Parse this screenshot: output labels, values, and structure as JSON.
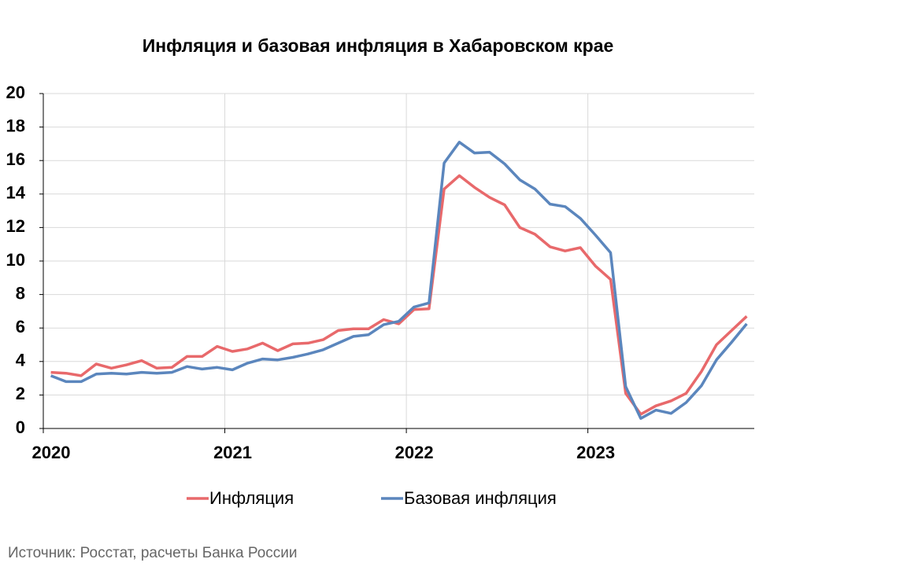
{
  "chart_data": {
    "type": "line",
    "title": "Инфляция и базовая инфляция в Хабаровском крае",
    "categories": [
      "2020",
      null,
      null,
      null,
      null,
      null,
      null,
      null,
      null,
      null,
      null,
      null,
      "2021",
      null,
      null,
      null,
      null,
      null,
      null,
      null,
      null,
      null,
      null,
      null,
      "2022",
      null,
      null,
      null,
      null,
      null,
      null,
      null,
      null,
      null,
      null,
      null,
      "2023",
      null,
      null,
      null,
      null,
      null,
      null,
      null,
      null,
      null,
      null
    ],
    "series": [
      {
        "name": "Инфляция",
        "color": "#e8696b",
        "values": [
          3.35,
          3.3,
          3.15,
          3.85,
          3.6,
          3.8,
          4.05,
          3.6,
          3.65,
          4.3,
          4.3,
          4.9,
          4.6,
          4.75,
          5.1,
          4.65,
          5.05,
          5.1,
          5.3,
          5.85,
          5.95,
          5.95,
          6.5,
          6.25,
          7.1,
          7.15,
          14.3,
          15.1,
          14.4,
          13.8,
          13.35,
          12.0,
          11.6,
          10.85,
          10.6,
          10.8,
          9.7,
          8.9,
          2.1,
          0.85,
          1.35,
          1.65,
          2.1,
          3.4,
          5.0,
          5.85,
          6.7
        ]
      },
      {
        "name": "Базовая инфляция",
        "color": "#5b86bd",
        "values": [
          3.15,
          2.8,
          2.8,
          3.25,
          3.3,
          3.25,
          3.35,
          3.3,
          3.35,
          3.7,
          3.55,
          3.65,
          3.5,
          3.9,
          4.15,
          4.1,
          4.25,
          4.45,
          4.7,
          5.1,
          5.5,
          5.6,
          6.2,
          6.4,
          7.25,
          7.5,
          15.85,
          17.1,
          16.45,
          16.5,
          15.8,
          14.85,
          14.3,
          13.4,
          13.25,
          12.55,
          11.55,
          10.5,
          2.5,
          0.6,
          1.1,
          0.9,
          1.55,
          2.55,
          4.1,
          5.15,
          6.25
        ]
      }
    ],
    "ylim": [
      0,
      20
    ],
    "yticks": [
      0,
      2,
      4,
      6,
      8,
      10,
      12,
      14,
      16,
      18,
      20
    ],
    "grid": true,
    "legend": "bottom",
    "source": "Источник: Росстат, расчеты Банка России"
  }
}
